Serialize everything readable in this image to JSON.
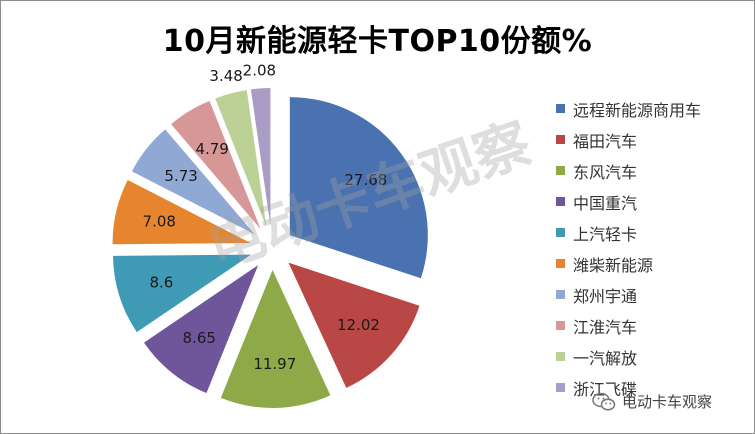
{
  "chart_data": {
    "type": "pie",
    "title": "10月新能源轻卡TOP10份额%",
    "categories": [
      "远程新能源商用车",
      "福田汽车",
      "东风汽车",
      "中国重汽",
      "上汽轻卡",
      "潍柴新能源",
      "郑州宇通",
      "江淮汽车",
      "一汽解放",
      "浙江飞碟"
    ],
    "values": [
      27.68,
      12.02,
      11.97,
      8.65,
      8.6,
      7.08,
      5.73,
      4.79,
      3.48,
      2.08
    ],
    "value_labels": [
      "27.68",
      "12.02",
      "11.97",
      "8.65",
      "8.6",
      "7.08",
      "5.73",
      "4.79",
      "3.48",
      "2.08"
    ],
    "colors": [
      "#4a72b0",
      "#b94745",
      "#8eaa48",
      "#6f559a",
      "#3f9ab5",
      "#e7852f",
      "#8fa9d4",
      "#d79796",
      "#bcd196",
      "#a99dc5"
    ],
    "legend_position": "right",
    "exploded": true
  },
  "watermark": "电动卡车观察",
  "brand": {
    "name": "电动卡车观察",
    "icon": "wechat-icon"
  }
}
